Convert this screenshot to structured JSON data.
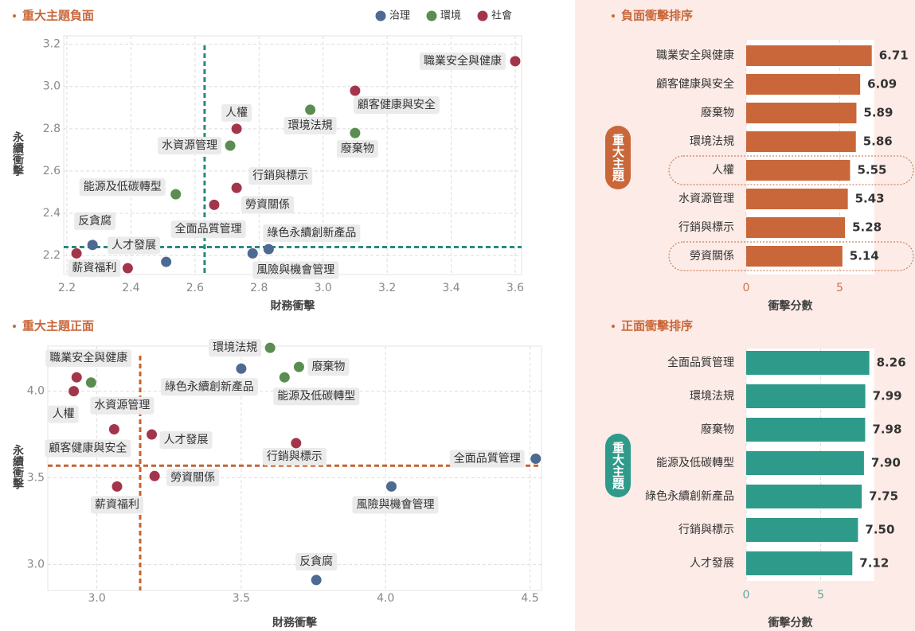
{
  "chart_data": [
    {
      "type": "scatter",
      "title": "重大主題負面",
      "x_label": "財務衝擊",
      "y_label": "永續衝擊",
      "xlim": [
        2.19,
        3.62
      ],
      "ylim": [
        2.11,
        3.24
      ],
      "xticks": [
        2.2,
        2.4,
        2.6,
        2.8,
        {
          "value": 3,
          "label": "3.0"
        },
        3.2,
        3.4,
        3.6
      ],
      "yticks": [
        2.2,
        2.4,
        2.6,
        2.8,
        {
          "value": 3,
          "label": "3.0"
        },
        3.2
      ],
      "grid": true,
      "vline": 2.63,
      "hline": 2.24,
      "ref_color": "#2a8a7a",
      "legend": "top",
      "series": [
        {
          "name": "治理",
          "color": "#4e6a93",
          "labels": [
            "反貪腐",
            "全面品質管理",
            "綠色永續創新產品",
            "風險與機會管理"
          ],
          "x": [
            2.28,
            2.51,
            2.83,
            2.78
          ],
          "y": [
            2.25,
            2.17,
            2.23,
            2.21
          ]
        },
        {
          "name": "環境",
          "color": "#5a8d4f",
          "labels": [
            "環境法規",
            "廢棄物",
            "水資源管理",
            "能源及低碳轉型"
          ],
          "x": [
            2.96,
            3.1,
            2.71,
            2.54
          ],
          "y": [
            2.89,
            2.78,
            2.72,
            2.49
          ]
        },
        {
          "name": "社會",
          "color": "#a3354b",
          "labels": [
            "職業安全與健康",
            "顧客健康與安全",
            "人權",
            "行銷與標示",
            "勞資關係",
            "人才發展",
            "薪資福利"
          ],
          "x": [
            3.6,
            3.1,
            2.73,
            2.73,
            2.66,
            2.23,
            2.39
          ],
          "y": [
            3.12,
            2.98,
            2.8,
            2.52,
            2.44,
            2.21,
            2.14
          ]
        }
      ]
    },
    {
      "type": "scatter",
      "title": "重大主題正面",
      "x_label": "財務衝擊",
      "y_label": "永續衝擊",
      "xlim": [
        2.83,
        4.54
      ],
      "ylim": [
        2.85,
        4.26
      ],
      "xticks": [
        {
          "value": 3,
          "label": "3.0"
        },
        3.5,
        {
          "value": 4,
          "label": "4.0"
        },
        4.5
      ],
      "yticks": [
        {
          "value": 3,
          "label": "3.0"
        },
        3.5,
        {
          "value": 4,
          "label": "4.0"
        }
      ],
      "grid": true,
      "vline": 3.15,
      "hline": 3.57,
      "ref_color": "#c8612f",
      "series": [
        {
          "color": "#4e6a93",
          "labels": [
            "綠色永續創新產品",
            "全面品質管理",
            "風險與機會管理",
            "反貪腐"
          ],
          "x": [
            3.5,
            4.52,
            4.02,
            3.76
          ],
          "y": [
            4.13,
            3.61,
            3.45,
            2.91
          ]
        },
        {
          "color": "#5a8d4f",
          "labels": [
            "環境法規",
            "廢棄物",
            "能源及低碳轉型",
            "水資源管理"
          ],
          "x": [
            3.6,
            3.7,
            3.65,
            2.98
          ],
          "y": [
            4.25,
            4.14,
            4.08,
            4.05
          ]
        },
        {
          "color": "#a3354b",
          "labels": [
            "職業安全與健康",
            "人權",
            "顧客健康與安全",
            "人才發展",
            "薪資福利",
            "勞資關係",
            "行銷與標示"
          ],
          "x": [
            2.93,
            2.92,
            3.06,
            3.19,
            3.07,
            3.2,
            3.69
          ],
          "y": [
            4.08,
            4.0,
            3.78,
            3.75,
            3.45,
            3.51,
            3.7
          ]
        }
      ]
    },
    {
      "type": "hbar",
      "title": "負面衝擊排序",
      "x_label": "衝擊分數",
      "group_label": "重大主題",
      "categories": [
        "職業安全與健康",
        "顧客健康與安全",
        "廢棄物",
        "環境法規",
        "人權",
        "水資源管理",
        "行銷與標示",
        "勞資關係"
      ],
      "values": [
        6.71,
        6.09,
        5.89,
        5.86,
        5.55,
        5.43,
        5.28,
        5.14
      ],
      "color": "#c9673a",
      "tick_color": "#d0714a",
      "xlim": [
        0,
        6.85
      ],
      "xticks": [
        0,
        5
      ],
      "highlight": [
        4,
        7
      ]
    },
    {
      "type": "hbar",
      "title": "正面衝擊排序",
      "x_label": "衝擊分數",
      "group_label": "重大主題",
      "categories": [
        "全面品質管理",
        "環境法規",
        "廢棄物",
        "能源及低碳轉型",
        "綠色永續創新產品",
        "行銷與標示",
        "人才發展"
      ],
      "values": [
        8.26,
        7.99,
        7.98,
        7.9,
        7.75,
        7.5,
        7.12
      ],
      "value_labels": [
        "8.26",
        "7.99",
        "7.98",
        "7.90",
        "7.75",
        "7.50",
        "7.12"
      ],
      "color": "#2e9a8a",
      "tick_color": "#5aa89c",
      "xlim": [
        0,
        8.6
      ],
      "xticks": [
        0,
        5
      ]
    }
  ]
}
